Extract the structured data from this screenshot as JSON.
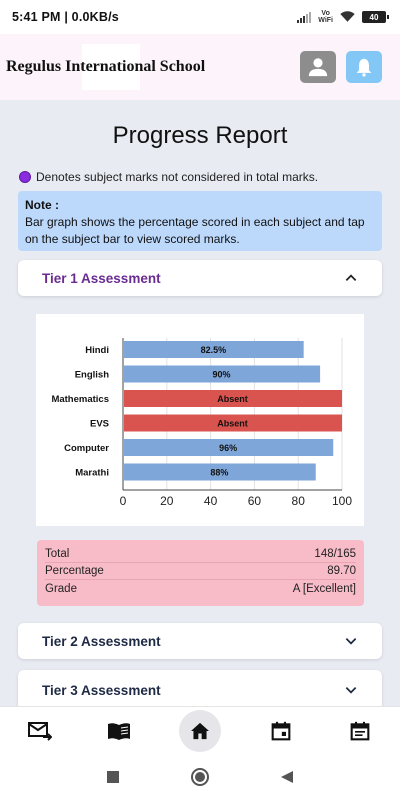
{
  "status_bar": {
    "time": "5:41 PM | 0.0KB/s",
    "network_line1": "Vo",
    "network_line2": "WiFi",
    "battery": "40"
  },
  "header": {
    "school_name": "Regulus International School"
  },
  "page": {
    "title": "Progress Report",
    "legend_note": "Denotes subject marks not considered in total marks.",
    "note_title": "Note :",
    "note_text": "Bar graph shows the percentage scored in each subject and tap on the subject bar to view scored marks."
  },
  "sections": [
    {
      "label": "Tier 1 Assessment",
      "expanded": true
    },
    {
      "label": "Tier 2 Assessment",
      "expanded": false
    },
    {
      "label": "Tier 3 Assessment",
      "expanded": false
    }
  ],
  "colors": {
    "accent_purple": "#6a2c91",
    "bar_blue": "#7ea6d8",
    "bar_red": "#d9534f",
    "summary_pink": "#f8bcc8",
    "note_blue": "#bcd8fb"
  },
  "chart_data": {
    "type": "bar",
    "orientation": "horizontal",
    "categories": [
      "Hindi",
      "English",
      "Mathematics",
      "EVS",
      "Computer",
      "Marathi"
    ],
    "values": [
      82.5,
      90,
      100,
      100,
      96,
      88
    ],
    "labels": [
      "82.5%",
      "90%",
      "Absent",
      "Absent",
      "96%",
      "88%"
    ],
    "status": [
      "scored",
      "scored",
      "absent",
      "absent",
      "scored",
      "scored"
    ],
    "xlim": [
      0,
      100
    ],
    "xticks": [
      0,
      20,
      40,
      60,
      80,
      100
    ],
    "grid": true
  },
  "summary": {
    "total_label": "Total",
    "total_value": "148/165",
    "percentage_label": "Percentage",
    "percentage_value": "89.70",
    "grade_label": "Grade",
    "grade_value": "A [Excellent]"
  },
  "bottom_nav": [
    "mail-icon",
    "book-icon",
    "home-icon",
    "calendar-icon",
    "schedule-icon"
  ]
}
